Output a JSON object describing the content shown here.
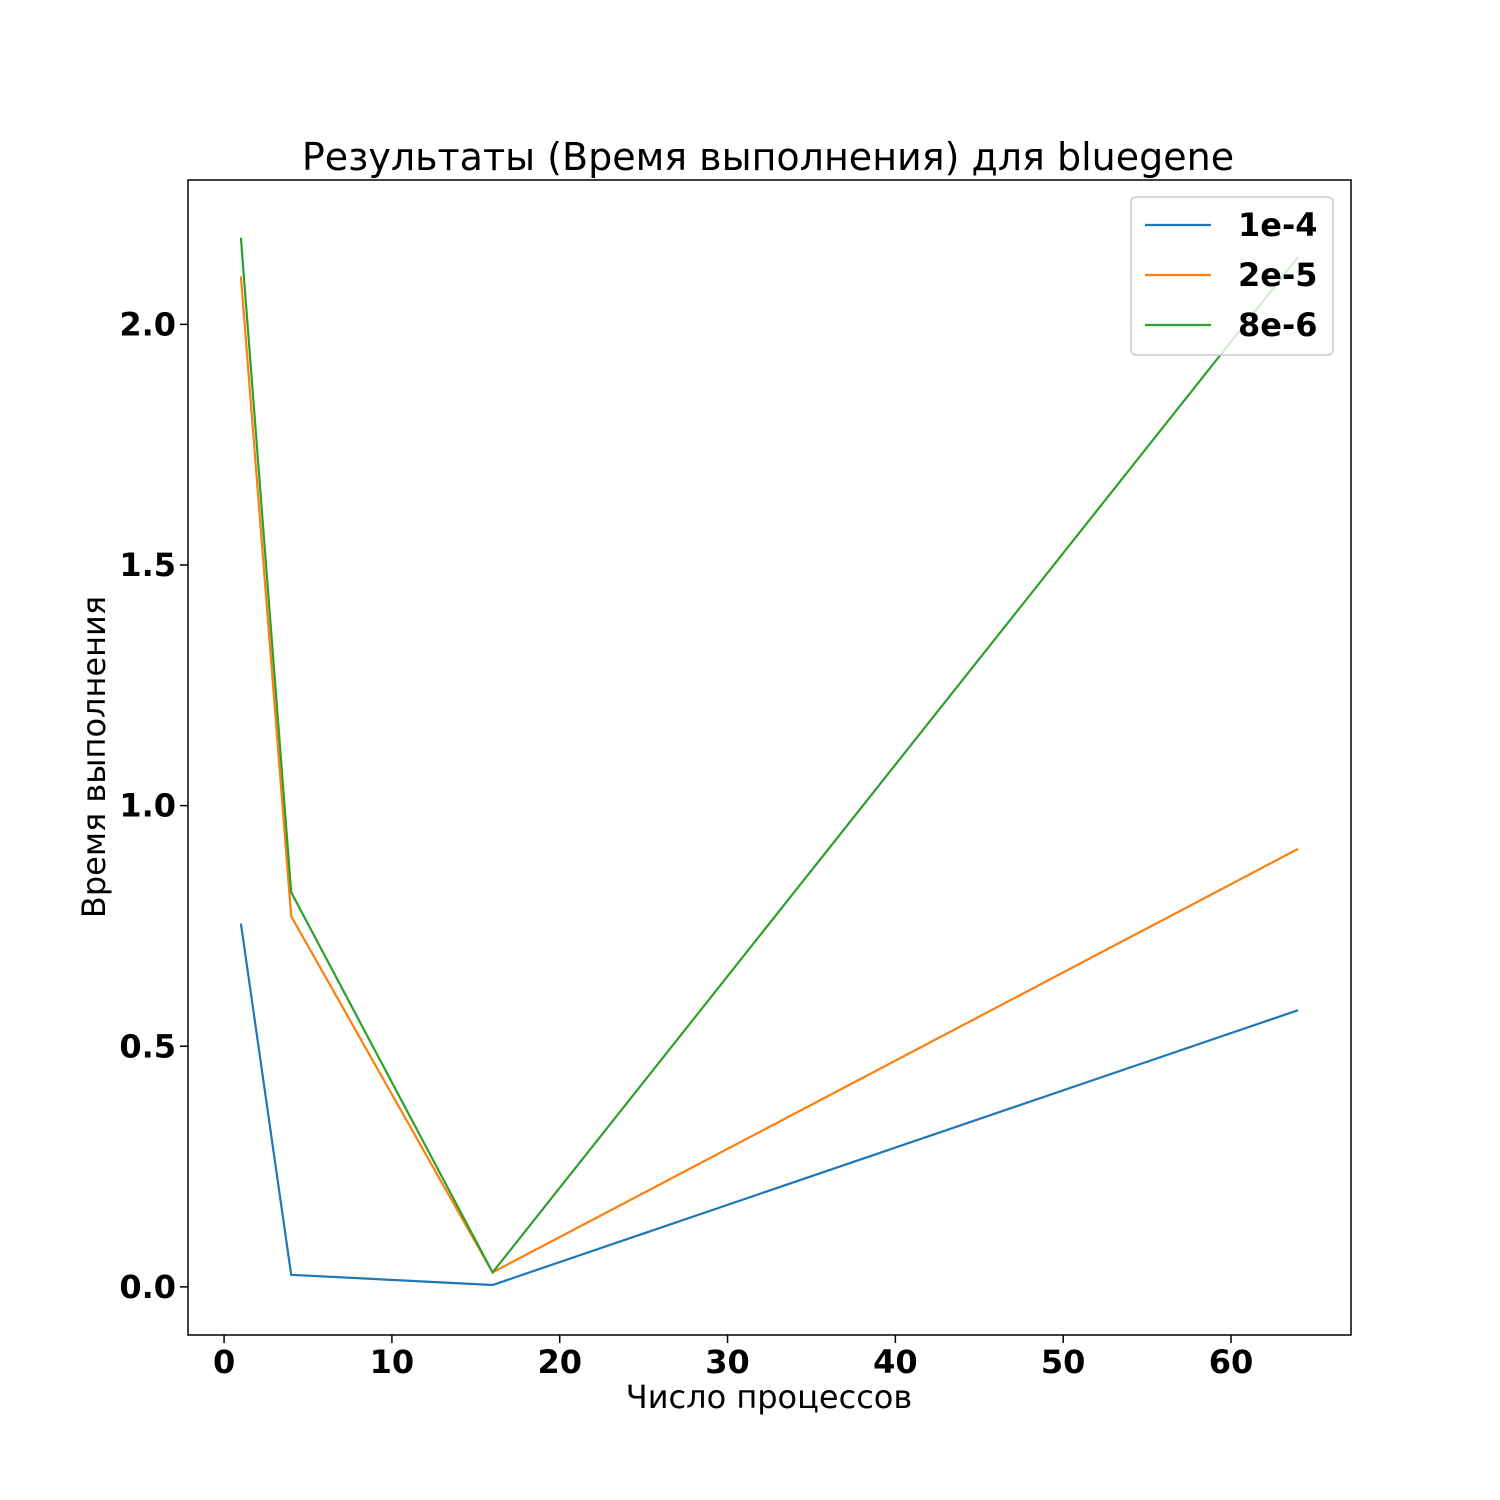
{
  "chart_data": {
    "type": "line",
    "title": "Результаты (Время выполнения) для bluegene",
    "xlabel": "Число процессов",
    "ylabel": "Время выполнения",
    "xlim": [
      -2.15,
      67.15
    ],
    "ylim": [
      -0.1,
      2.3
    ],
    "xticks": [
      0,
      10,
      20,
      30,
      40,
      50,
      60
    ],
    "yticks": [
      0.0,
      0.5,
      1.0,
      1.5,
      2.0
    ],
    "ytick_labels": [
      "0.0",
      "0.5",
      "1.0",
      "1.5",
      "2.0"
    ],
    "grid": false,
    "legend_position": "upper-right",
    "x": [
      1,
      4,
      16,
      64
    ],
    "series": [
      {
        "name": "1e-4",
        "color": "#1f77b4",
        "values": [
          0.755,
          0.025,
          0.004,
          0.575
        ]
      },
      {
        "name": "2e-5",
        "color": "#ff7f0e",
        "values": [
          2.1,
          0.77,
          0.03,
          0.91
        ]
      },
      {
        "name": "8e-6",
        "color": "#2ca02c",
        "values": [
          2.18,
          0.82,
          0.03,
          2.14
        ]
      }
    ]
  }
}
